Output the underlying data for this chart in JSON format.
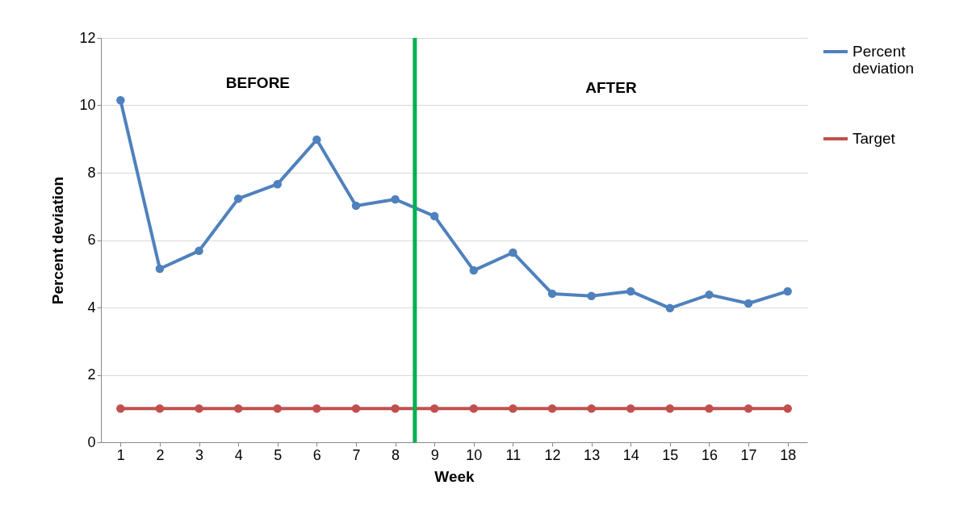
{
  "chart_data": {
    "type": "line",
    "xlabel": "Week",
    "ylabel": "Percent deviation",
    "x": [
      1,
      2,
      3,
      4,
      5,
      6,
      7,
      8,
      9,
      10,
      11,
      12,
      13,
      14,
      15,
      16,
      17,
      18
    ],
    "xlim": [
      0.5,
      18.5
    ],
    "xticks": [
      1,
      2,
      3,
      4,
      5,
      6,
      7,
      8,
      9,
      10,
      11,
      12,
      13,
      14,
      15,
      16,
      17,
      18
    ],
    "ylim": [
      0,
      12
    ],
    "yticks": [
      0,
      2,
      4,
      6,
      8,
      10,
      12
    ],
    "series": [
      {
        "name": "Percent deviation",
        "color": "#4f81bd",
        "values": [
          10.15,
          5.15,
          5.68,
          7.23,
          7.66,
          8.98,
          7.02,
          7.21,
          6.71,
          5.1,
          5.63,
          4.41,
          4.34,
          4.48,
          3.98,
          4.38,
          4.12,
          4.48
        ]
      },
      {
        "name": "Target",
        "color": "#c0504d",
        "values": [
          1,
          1,
          1,
          1,
          1,
          1,
          1,
          1,
          1,
          1,
          1,
          1,
          1,
          1,
          1,
          1,
          1,
          1
        ]
      }
    ],
    "ref_lines": [
      {
        "axis": "x",
        "value": 8.5,
        "color": "#00b050"
      }
    ],
    "annotations": [
      "BEFORE",
      "AFTER"
    ],
    "grid": "y",
    "legend": "right",
    "marker": "circle",
    "line_style": "solid"
  }
}
